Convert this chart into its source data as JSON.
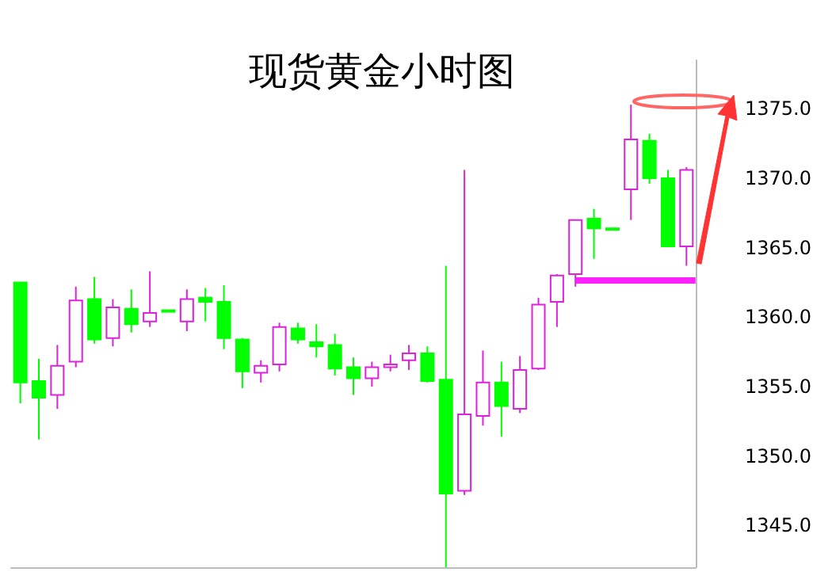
{
  "chart_data": {
    "type": "candlestick",
    "title": "现货黄金小时图",
    "categories": [
      null,
      null,
      null,
      null,
      null,
      null,
      null,
      null,
      null,
      null,
      null,
      null,
      null,
      null,
      null,
      null,
      null,
      null,
      null,
      null,
      null,
      null,
      null,
      null,
      null,
      null,
      null,
      null,
      null,
      null,
      null,
      null,
      null,
      null,
      null,
      null,
      null
    ],
    "ohlc": [
      [
        1362.5,
        1362.5,
        1353.8,
        1355.3
      ],
      [
        1355.4,
        1357.0,
        1351.2,
        1354.2
      ],
      [
        1354.4,
        1358.0,
        1353.4,
        1356.5
      ],
      [
        1356.8,
        1362.2,
        1356.4,
        1361.2
      ],
      [
        1361.3,
        1362.9,
        1358.1,
        1358.4
      ],
      [
        1358.5,
        1361.3,
        1357.9,
        1360.7
      ],
      [
        1360.6,
        1362.0,
        1358.9,
        1359.5
      ],
      [
        1359.7,
        1363.3,
        1359.3,
        1360.3
      ],
      [
        1360.5,
        1360.5,
        1360.4,
        1360.4
      ],
      [
        1359.7,
        1362.0,
        1359.0,
        1361.3
      ],
      [
        1361.4,
        1362.1,
        1359.7,
        1361.1
      ],
      [
        1361.1,
        1362.3,
        1357.7,
        1358.5
      ],
      [
        1358.4,
        1358.5,
        1354.9,
        1356.1
      ],
      [
        1356.0,
        1356.9,
        1355.3,
        1356.5
      ],
      [
        1356.6,
        1359.6,
        1356.1,
        1359.3
      ],
      [
        1359.2,
        1359.6,
        1358.1,
        1358.4
      ],
      [
        1358.2,
        1359.5,
        1357.1,
        1357.9
      ],
      [
        1358.0,
        1358.8,
        1355.8,
        1356.3
      ],
      [
        1356.4,
        1357.1,
        1354.4,
        1355.6
      ],
      [
        1355.6,
        1356.8,
        1355.0,
        1356.4
      ],
      [
        1356.4,
        1357.3,
        1356.1,
        1356.6
      ],
      [
        1356.9,
        1358.0,
        1356.2,
        1357.4
      ],
      [
        1357.4,
        1357.9,
        1355.3,
        1355.4
      ],
      [
        1355.5,
        1363.7,
        1342.0,
        1347.3
      ],
      [
        1347.5,
        1370.6,
        1347.2,
        1353.0
      ],
      [
        1352.9,
        1357.6,
        1352.2,
        1355.3
      ],
      [
        1355.3,
        1356.8,
        1351.4,
        1353.6
      ],
      [
        1353.4,
        1357.2,
        1353.1,
        1356.2
      ],
      [
        1356.3,
        1361.4,
        1356.2,
        1360.9
      ],
      [
        1361.1,
        1363.1,
        1359.3,
        1363.0
      ],
      [
        1363.1,
        1367.0,
        1362.2,
        1367.0
      ],
      [
        1367.1,
        1367.8,
        1364.2,
        1366.4
      ],
      [
        1366.4,
        1366.4,
        1366.3,
        1366.3
      ],
      [
        1369.2,
        1375.3,
        1367.0,
        1372.8
      ],
      [
        1372.7,
        1373.2,
        1369.6,
        1370.0
      ],
      [
        1370.0,
        1370.6,
        1365.1,
        1365.1
      ],
      [
        1365.1,
        1370.8,
        1363.7,
        1370.6
      ]
    ],
    "colors": [
      "#00ff00",
      "#00ff00",
      "#dd22dd",
      "#dd22dd",
      "#00ff00",
      "#dd22dd",
      "#00ff00",
      "#dd22dd",
      "#00ff00",
      "#dd22dd",
      "#00ff00",
      "#00ff00",
      "#00ff00",
      "#dd22dd",
      "#dd22dd",
      "#00ff00",
      "#00ff00",
      "#00ff00",
      "#00ff00",
      "#dd22dd",
      "#dd22dd",
      "#dd22dd",
      "#00ff00",
      "#00ff00",
      "#dd22dd",
      "#dd22dd",
      "#00ff00",
      "#dd22dd",
      "#dd22dd",
      "#dd22dd",
      "#dd22dd",
      "#00ff00",
      "#00ff00",
      "#dd22dd",
      "#00ff00",
      "#00ff00",
      "#dd22dd"
    ],
    "ylim": [
      1342,
      1378.5
    ],
    "yticks": [
      {
        "value": 1345,
        "label": "1345.0"
      },
      {
        "value": 1350,
        "label": "1350.0"
      },
      {
        "value": 1355,
        "label": "1355.0"
      },
      {
        "value": 1360,
        "label": "1360.0"
      },
      {
        "value": 1365,
        "label": "1365.0"
      },
      {
        "value": 1370,
        "label": "1370.0"
      },
      {
        "value": 1375,
        "label": "1375.0"
      }
    ],
    "tick_labels": "y",
    "grid": false,
    "ref_lines": [
      {
        "axis": "y",
        "value": 1362.7,
        "color": "#ff22ff"
      }
    ]
  }
}
